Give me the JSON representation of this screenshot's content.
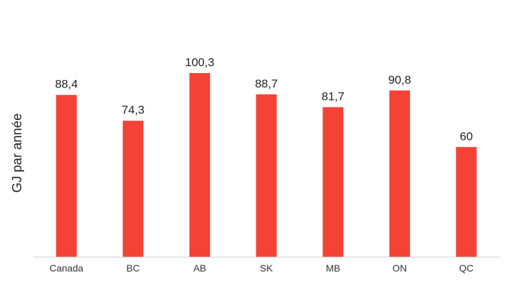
{
  "chart_data": {
    "type": "bar",
    "categories": [
      "Canada",
      "BC",
      "AB",
      "SK",
      "MB",
      "ON",
      "QC"
    ],
    "values": [
      88.4,
      74.3,
      100.3,
      88.7,
      81.7,
      90.8,
      60
    ],
    "data_labels": [
      "88,4",
      "74,3",
      "100,3",
      "88,7",
      "81,7",
      "90,8",
      "60"
    ],
    "ylabel": "GJ par année",
    "ylim": [
      0,
      100.3
    ],
    "grid": false,
    "legend": "none",
    "bar_color": "#f44336",
    "axis_color": "#cccccc"
  }
}
